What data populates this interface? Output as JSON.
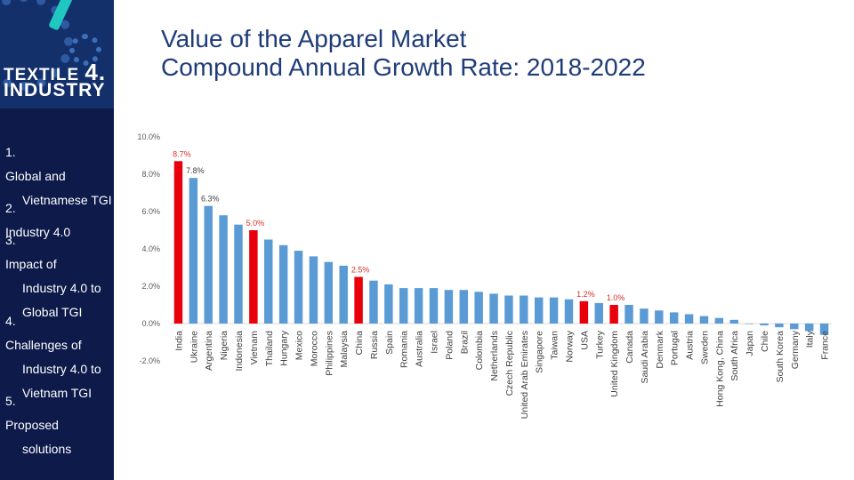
{
  "logo": {
    "line1": "TEXTILE",
    "number": "4.",
    "line2": "INDUSTRY"
  },
  "title": {
    "line1": "Value of the Apparel Market",
    "line2": "Compound Annual Growth Rate: 2018-2022"
  },
  "menu": [
    {
      "num": "1.",
      "lines": [
        "Global and",
        "Vietnamese TGI"
      ]
    },
    {
      "num": "2.",
      "lines": [
        "Industry 4.0"
      ]
    },
    {
      "num": "3.",
      "lines": [
        "Impact of",
        "Industry 4.0 to",
        "Global TGI"
      ]
    },
    {
      "num": "4.",
      "lines": [
        "Challenges of",
        "Industry 4.0 to",
        "Vietnam TGI"
      ]
    },
    {
      "num": "5.",
      "lines": [
        "Proposed",
        "solutions"
      ]
    }
  ],
  "chart_data": {
    "type": "bar",
    "title": "Value of the Apparel Market Compound Annual Growth Rate: 2018-2022",
    "xlabel": "",
    "ylabel": "",
    "ylim": [
      -2,
      10
    ],
    "yticks": [
      "10.0%",
      "8.0%",
      "6.0%",
      "4.0%",
      "2.0%",
      "0.0%",
      "-2.0%"
    ],
    "ytick_values": [
      10,
      8,
      6,
      4,
      2,
      0,
      -2
    ],
    "grid": false,
    "categories": [
      "India",
      "Ukraine",
      "Argentina",
      "Nigeria",
      "Indonesia",
      "Vietnam",
      "Thailand",
      "Hungary",
      "Mexico",
      "Morocco",
      "Philippines",
      "Malaysia",
      "China",
      "Russia",
      "Spain",
      "Romania",
      "Australia",
      "Israel",
      "Poland",
      "Brazil",
      "Colombia",
      "Netherlands",
      "Czech Republic",
      "United Arab Emirates",
      "Singapore",
      "Taiwan",
      "Norway",
      "USA",
      "Turkey",
      "United Kingdom",
      "Canada",
      "Saudi Arabia",
      "Denmark",
      "Portugal",
      "Austria",
      "Sweden",
      "Hong Kong, China",
      "South Africa",
      "Japan",
      "Chile",
      "South Korea",
      "Germany",
      "Italy",
      "France"
    ],
    "values": [
      8.7,
      7.8,
      6.3,
      5.8,
      5.3,
      5.0,
      4.5,
      4.2,
      3.9,
      3.6,
      3.3,
      3.1,
      2.5,
      2.3,
      2.1,
      1.9,
      1.9,
      1.9,
      1.8,
      1.8,
      1.7,
      1.6,
      1.5,
      1.5,
      1.4,
      1.4,
      1.3,
      1.2,
      1.1,
      1.0,
      1.0,
      0.8,
      0.7,
      0.6,
      0.5,
      0.4,
      0.3,
      0.2,
      0.0,
      -0.1,
      -0.2,
      -0.3,
      -0.4,
      -0.6
    ],
    "highlighted": [
      "India",
      "Vietnam",
      "China",
      "USA",
      "United Kingdom"
    ],
    "data_labels": {
      "India": "8.7%",
      "Ukraine": "7.8%",
      "Argentina": "6.3%",
      "Vietnam": "5.0%",
      "China": "2.5%",
      "USA": "1.2%",
      "United Kingdom": "1.0%"
    },
    "colors": {
      "bar": "#5b9bd5",
      "highlight": "#e8000b",
      "highlight_label": "#d6302b",
      "label": "#404040",
      "axis_text": "#595959",
      "axis_line": "#d9d9d9"
    }
  }
}
